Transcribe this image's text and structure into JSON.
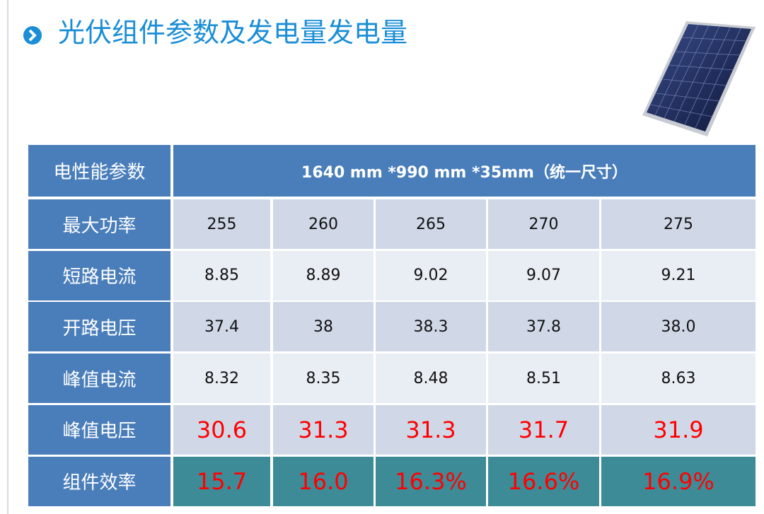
{
  "title": "光伏组件参数及发电量发电量",
  "table": {
    "header": [
      "电性能参数",
      "1640 mm *990 mm *35mm（统一尺寸）"
    ],
    "rows": [
      [
        "最大功率",
        "255",
        "260",
        "265",
        "270",
        "275"
      ],
      [
        "短路电流",
        "8.85",
        "8.89",
        "9.02",
        "9.07",
        "9.21"
      ],
      [
        "开路电压",
        "37.4",
        "38",
        "38.3",
        "37.8",
        "38.0"
      ],
      [
        "峰值电流",
        "8.32",
        "8.35",
        "8.48",
        "8.51",
        "8.63"
      ],
      [
        "峰值电压",
        "30.6",
        "31.3",
        "31.3",
        "31.7",
        "31.9"
      ],
      [
        "组件效率",
        "15.7",
        "16.0",
        "16.3%",
        "16.6%",
        "16.9%"
      ]
    ]
  }
}
